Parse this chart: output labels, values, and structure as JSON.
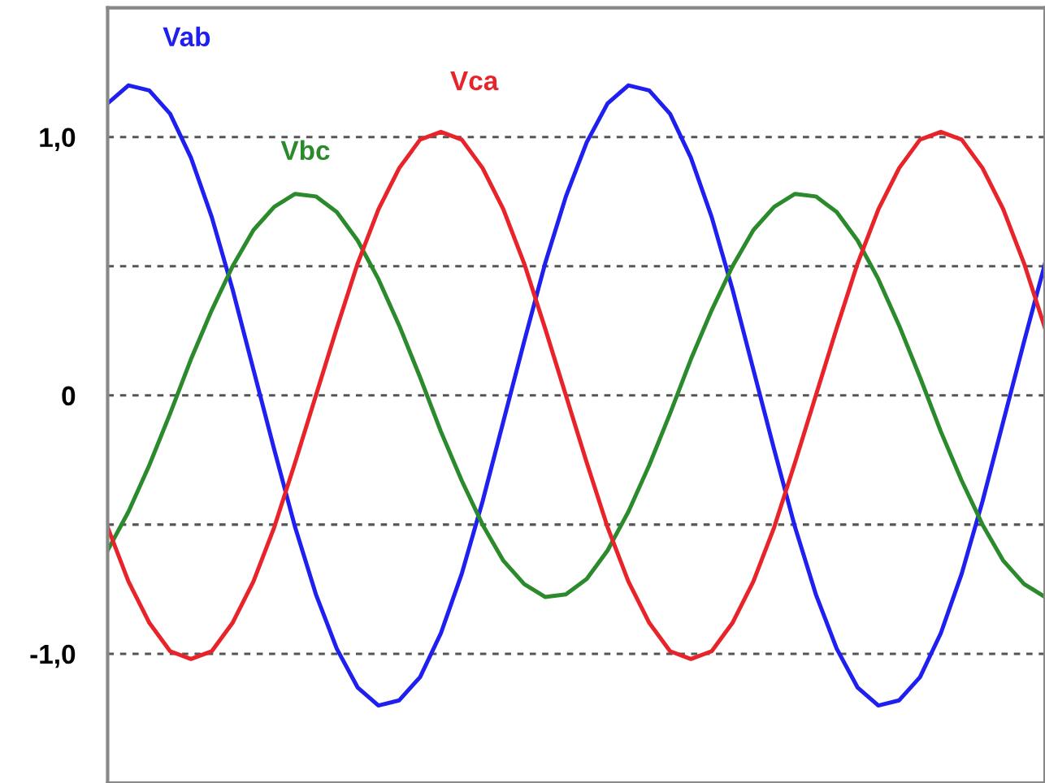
{
  "chart_data": {
    "type": "line",
    "categories": [
      null,
      null,
      null,
      null,
      null,
      null,
      null,
      null,
      null,
      null,
      null,
      null,
      null,
      null,
      null,
      null,
      null,
      null,
      null,
      null,
      null,
      null,
      null,
      null,
      null,
      null,
      null,
      null,
      null,
      null,
      null,
      null,
      null,
      null,
      null,
      null,
      null,
      null,
      null,
      null,
      null,
      null,
      null,
      null,
      null,
      null
    ],
    "ylim": [
      -1.5,
      1.5
    ],
    "yticks": [
      {
        "value": -1.0,
        "label": "-1,0"
      },
      {
        "value": -0.5,
        "label": null
      },
      {
        "value": 0,
        "label": "0"
      },
      {
        "value": 0.5,
        "label": null
      },
      {
        "value": 1.0,
        "label": "1,0"
      }
    ],
    "tick_labels": "y",
    "grid": "y",
    "legend": false,
    "marker": "none",
    "line_style": "solid",
    "series": [
      {
        "name": "Vab",
        "color": "#1f1ff0",
        "values": [
          1.13,
          1.2,
          1.18,
          1.09,
          0.92,
          0.69,
          0.41,
          0.1,
          -0.21,
          -0.51,
          -0.77,
          -0.98,
          -1.13,
          -1.2,
          -1.18,
          -1.09,
          -0.92,
          -0.69,
          -0.41,
          -0.1,
          0.21,
          0.51,
          0.77,
          0.98,
          1.13,
          1.2,
          1.18,
          1.09,
          0.92,
          0.69,
          0.41,
          0.1,
          -0.21,
          -0.51,
          -0.77,
          -0.98,
          -1.13,
          -1.2,
          -1.18,
          -1.09,
          -0.92,
          -0.69,
          -0.41,
          -0.1,
          0.21,
          0.51
        ]
      },
      {
        "name": "Vbc",
        "color": "#2b8a2b",
        "values": [
          -0.6,
          -0.45,
          -0.27,
          -0.07,
          0.14,
          0.33,
          0.5,
          0.64,
          0.73,
          0.78,
          0.77,
          0.71,
          0.6,
          0.45,
          0.27,
          0.07,
          -0.14,
          -0.33,
          -0.5,
          -0.64,
          -0.73,
          -0.78,
          -0.77,
          -0.71,
          -0.6,
          -0.45,
          -0.27,
          -0.07,
          0.14,
          0.33,
          0.5,
          0.64,
          0.73,
          0.78,
          0.77,
          0.71,
          0.6,
          0.45,
          0.27,
          0.07,
          -0.14,
          -0.33,
          -0.5,
          -0.64,
          -0.73,
          -0.78
        ]
      },
      {
        "name": "Vca",
        "color": "#e8242a",
        "values": [
          -0.51,
          -0.72,
          -0.88,
          -0.99,
          -1.02,
          -0.99,
          -0.88,
          -0.72,
          -0.51,
          -0.26,
          0,
          0.26,
          0.51,
          0.72,
          0.88,
          0.99,
          1.02,
          0.99,
          0.88,
          0.72,
          0.51,
          0.26,
          0,
          -0.26,
          -0.51,
          -0.72,
          -0.88,
          -0.99,
          -1.02,
          -0.99,
          -0.88,
          -0.72,
          -0.51,
          -0.26,
          0,
          0.26,
          0.51,
          0.72,
          0.88,
          0.99,
          1.02,
          0.99,
          0.88,
          0.72,
          0.51,
          0.26
        ]
      }
    ]
  }
}
